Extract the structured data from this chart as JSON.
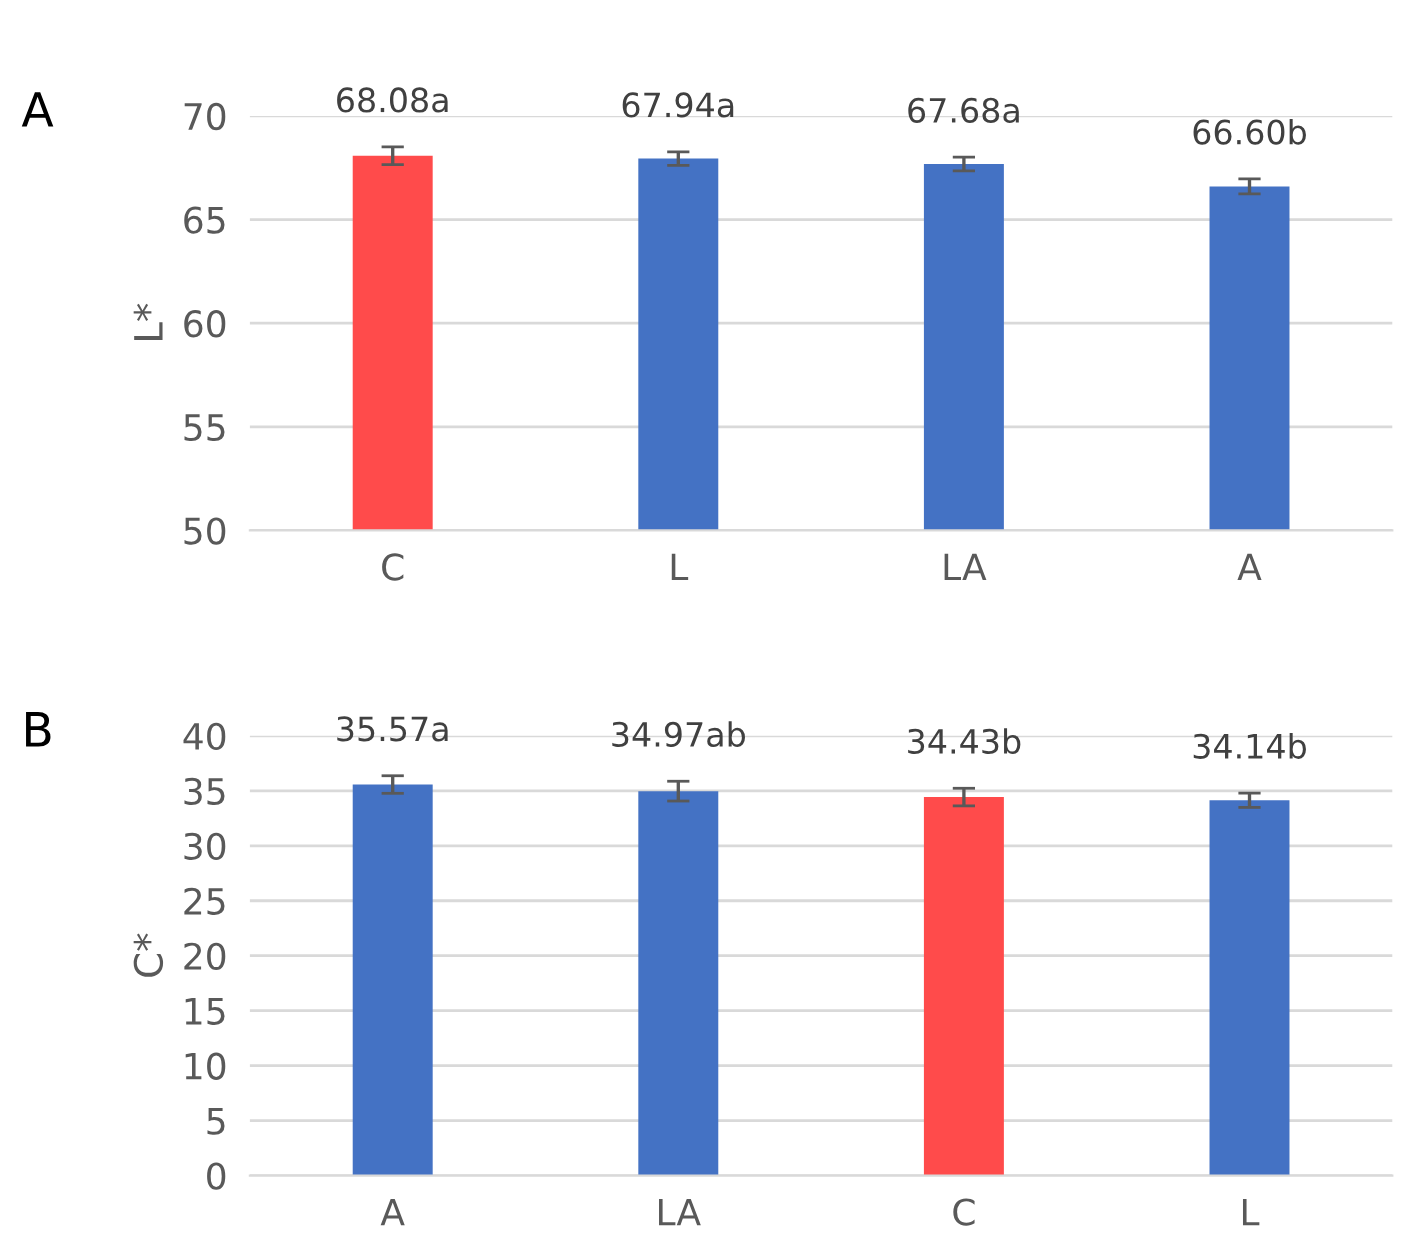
{
  "chart_data": [
    {
      "type": "bar",
      "ylabel": "L*",
      "categories": [
        "C",
        "L",
        "LA",
        "A"
      ],
      "values": [
        68.08,
        67.94,
        67.68,
        66.6
      ],
      "colors": [
        "#ff4b4b",
        "#4472c4",
        "#4472c4",
        "#4472c4"
      ],
      "errors": [
        0.43,
        0.33,
        0.33,
        0.36
      ],
      "value_labels": [
        "68.08a",
        "67.94a",
        "67.68a",
        "66.60b"
      ],
      "ylim": [
        50,
        70
      ],
      "yticks": [
        50,
        55,
        60,
        65,
        70
      ],
      "grid": "y",
      "annotations": [
        "A"
      ]
    },
    {
      "type": "bar",
      "ylabel": "C*",
      "categories": [
        "A",
        "LA",
        "C",
        "L"
      ],
      "values": [
        35.57,
        34.97,
        34.43,
        34.14
      ],
      "colors": [
        "#4472c4",
        "#4472c4",
        "#ff4b4b",
        "#4472c4"
      ],
      "errors": [
        0.8,
        0.9,
        0.8,
        0.65
      ],
      "value_labels": [
        "35.57a",
        "34.97ab",
        "34.43b",
        "34.14b"
      ],
      "ylim": [
        0,
        40
      ],
      "yticks": [
        0,
        5,
        10,
        15,
        20,
        25,
        30,
        35,
        40
      ],
      "grid": "y",
      "annotations": [
        "B"
      ]
    }
  ]
}
